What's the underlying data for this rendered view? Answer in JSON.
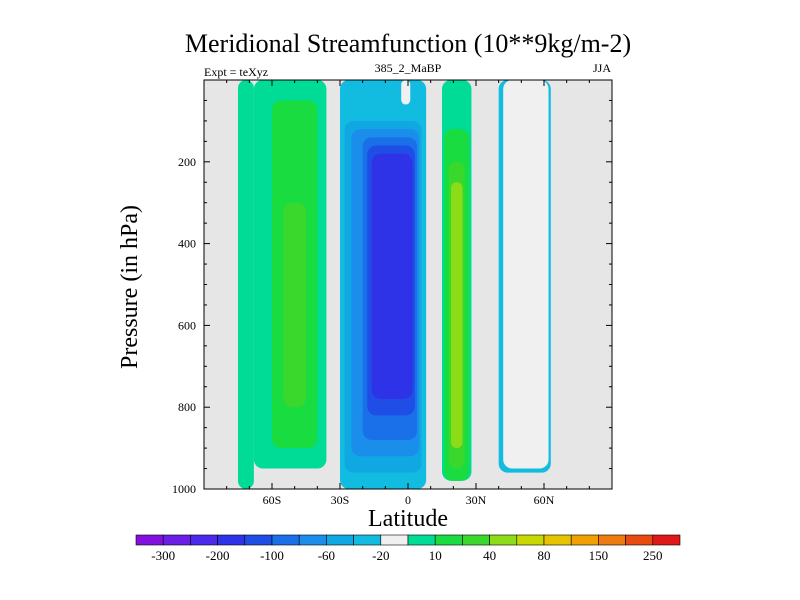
{
  "chart_data": {
    "type": "heatmap",
    "title": "Meridional Streamfunction (10**9kg/m-2)",
    "left_string": "Expt = teXyz",
    "center_string": "385_2_MaBP",
    "right_string": "JJA",
    "xlabel": "Latitude",
    "ylabel": "Pressure (in hPa)",
    "xlim": [
      -90,
      90
    ],
    "ylim": [
      1000,
      0
    ],
    "x_ticks": [
      {
        "value": -60,
        "label": "60S"
      },
      {
        "value": -30,
        "label": "30S"
      },
      {
        "value": 0,
        "label": "0"
      },
      {
        "value": 30,
        "label": "30N"
      },
      {
        "value": 60,
        "label": "60N"
      }
    ],
    "y_ticks": [
      {
        "value": 200,
        "label": "200"
      },
      {
        "value": 400,
        "label": "400"
      },
      {
        "value": 600,
        "label": "600"
      },
      {
        "value": 800,
        "label": "800"
      },
      {
        "value": 1000,
        "label": "1000"
      }
    ],
    "background_color": "#e6e6e6",
    "levels_colors": [
      "#8410e0",
      "#6a1ee6",
      "#4c2aec",
      "#2f33e8",
      "#1f4ee6",
      "#1a70e8",
      "#1a8eea",
      "#10a8e2",
      "#12bce0",
      "#f0f0f0",
      "#00dc96",
      "#18dc40",
      "#3ad82c",
      "#8cdc18",
      "#c8d800",
      "#e6c400",
      "#f0a000",
      "#ee7a10",
      "#e84a10",
      "#e01818"
    ],
    "colorbar_labels": [
      {
        "boundary": 1,
        "label": "-300"
      },
      {
        "boundary": 3,
        "label": "-200"
      },
      {
        "boundary": 5,
        "label": "-100"
      },
      {
        "boundary": 7,
        "label": "-60"
      },
      {
        "boundary": 9,
        "label": "-20"
      },
      {
        "boundary": 11,
        "label": "10"
      },
      {
        "boundary": 13,
        "label": "40"
      },
      {
        "boundary": 15,
        "label": "80"
      },
      {
        "boundary": 17,
        "label": "150"
      },
      {
        "boundary": 19,
        "label": "250"
      }
    ],
    "cells": [
      {
        "level": 10,
        "lat": [
          -75,
          -68
        ],
        "p": [
          0,
          1000
        ]
      },
      {
        "level": 11,
        "lat": [
          -62,
          -60
        ],
        "p": [
          600,
          800
        ]
      },
      {
        "level": 10,
        "lat": [
          -68,
          -36
        ],
        "p": [
          0,
          950
        ]
      },
      {
        "level": 11,
        "lat": [
          -60,
          -40
        ],
        "p": [
          50,
          900
        ]
      },
      {
        "level": 12,
        "lat": [
          -55,
          -45
        ],
        "p": [
          300,
          800
        ]
      },
      {
        "level": 8,
        "lat": [
          -30,
          8
        ],
        "p": [
          0,
          1000
        ]
      },
      {
        "level": 7,
        "lat": [
          -28,
          6
        ],
        "p": [
          100,
          960
        ]
      },
      {
        "level": 6,
        "lat": [
          -25,
          5
        ],
        "p": [
          120,
          920
        ]
      },
      {
        "level": 5,
        "lat": [
          -20,
          4
        ],
        "p": [
          140,
          880
        ]
      },
      {
        "level": 4,
        "lat": [
          -18,
          3
        ],
        "p": [
          160,
          820
        ]
      },
      {
        "level": 3,
        "lat": [
          -16,
          2
        ],
        "p": [
          180,
          780
        ]
      },
      {
        "level": 9,
        "lat": [
          -3,
          1
        ],
        "p": [
          0,
          60
        ]
      },
      {
        "level": 10,
        "lat": [
          15,
          28
        ],
        "p": [
          0,
          980
        ]
      },
      {
        "level": 11,
        "lat": [
          16,
          27
        ],
        "p": [
          120,
          980
        ]
      },
      {
        "level": 12,
        "lat": [
          18,
          25
        ],
        "p": [
          200,
          950
        ]
      },
      {
        "level": 13,
        "lat": [
          19,
          24
        ],
        "p": [
          250,
          900
        ]
      },
      {
        "level": 8,
        "lat": [
          40,
          63
        ],
        "p": [
          0,
          960
        ]
      },
      {
        "level": 9,
        "lat": [
          42,
          62
        ],
        "p": [
          0,
          950
        ]
      }
    ]
  }
}
